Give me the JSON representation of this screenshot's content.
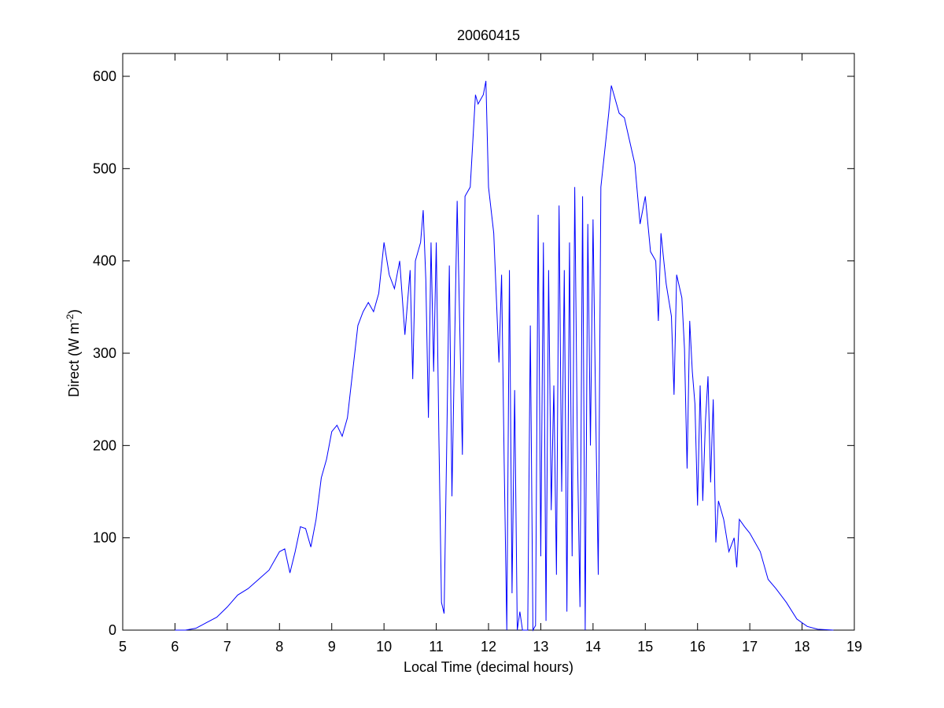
{
  "chart_data": {
    "type": "line",
    "title": "20060415",
    "xlabel": "Local Time (decimal hours)",
    "ylabel": [
      "Direct (W m",
      "-2",
      ")"
    ],
    "color": "#0000ff",
    "xlim": [
      5,
      19
    ],
    "xticks": [
      5,
      6,
      7,
      8,
      9,
      10,
      11,
      12,
      13,
      14,
      15,
      16,
      17,
      18,
      19
    ],
    "ylim": [
      0,
      600
    ],
    "yticks": [
      0,
      100,
      200,
      300,
      400,
      500,
      600
    ],
    "x": [
      6.0,
      6.2,
      6.4,
      6.6,
      6.8,
      7.0,
      7.2,
      7.4,
      7.6,
      7.8,
      8.0,
      8.1,
      8.2,
      8.3,
      8.4,
      8.5,
      8.6,
      8.7,
      8.8,
      8.9,
      9.0,
      9.1,
      9.2,
      9.3,
      9.4,
      9.5,
      9.6,
      9.7,
      9.8,
      9.9,
      10.0,
      10.1,
      10.2,
      10.3,
      10.4,
      10.5,
      10.55,
      10.6,
      10.7,
      10.75,
      10.8,
      10.85,
      10.9,
      10.95,
      11.0,
      11.05,
      11.1,
      11.15,
      11.2,
      11.25,
      11.3,
      11.4,
      11.5,
      11.55,
      11.65,
      11.75,
      11.8,
      11.9,
      11.95,
      12.0,
      12.1,
      12.2,
      12.25,
      12.3,
      12.35,
      12.4,
      12.45,
      12.5,
      12.55,
      12.6,
      12.65,
      12.7,
      12.75,
      12.8,
      12.85,
      12.9,
      12.95,
      13.0,
      13.05,
      13.1,
      13.15,
      13.2,
      13.25,
      13.3,
      13.35,
      13.4,
      13.45,
      13.5,
      13.55,
      13.6,
      13.65,
      13.7,
      13.75,
      13.8,
      13.85,
      13.9,
      13.95,
      14.0,
      14.05,
      14.1,
      14.15,
      14.3,
      14.35,
      14.5,
      14.6,
      14.7,
      14.8,
      14.9,
      15.0,
      15.1,
      15.2,
      15.25,
      15.3,
      15.4,
      15.5,
      15.55,
      15.6,
      15.7,
      15.75,
      15.8,
      15.85,
      15.9,
      15.95,
      16.0,
      16.05,
      16.1,
      16.15,
      16.2,
      16.25,
      16.3,
      16.35,
      16.4,
      16.5,
      16.6,
      16.7,
      16.75,
      16.8,
      16.9,
      17.0,
      17.2,
      17.35,
      17.5,
      17.7,
      17.9,
      18.1,
      18.3,
      18.6
    ],
    "values": [
      0,
      0,
      2,
      8,
      14,
      25,
      38,
      45,
      55,
      65,
      85,
      88,
      62,
      85,
      112,
      110,
      90,
      120,
      165,
      185,
      215,
      222,
      210,
      230,
      280,
      330,
      345,
      355,
      345,
      365,
      420,
      385,
      370,
      400,
      320,
      390,
      272,
      400,
      420,
      455,
      380,
      230,
      420,
      280,
      420,
      210,
      30,
      18,
      200,
      395,
      145,
      465,
      190,
      470,
      480,
      580,
      570,
      580,
      595,
      480,
      430,
      290,
      385,
      180,
      0,
      390,
      40,
      260,
      0,
      20,
      0,
      0,
      0,
      330,
      0,
      5,
      450,
      80,
      420,
      10,
      390,
      130,
      265,
      60,
      460,
      150,
      390,
      20,
      420,
      80,
      480,
      200,
      25,
      470,
      0,
      440,
      200,
      445,
      240,
      60,
      480,
      560,
      590,
      560,
      555,
      530,
      505,
      440,
      470,
      410,
      400,
      335,
      430,
      375,
      340,
      255,
      385,
      360,
      305,
      175,
      335,
      280,
      245,
      135,
      265,
      140,
      225,
      275,
      160,
      250,
      95,
      140,
      120,
      85,
      100,
      68,
      120,
      112,
      105,
      85,
      55,
      45,
      30,
      12,
      4,
      1,
      0
    ]
  }
}
